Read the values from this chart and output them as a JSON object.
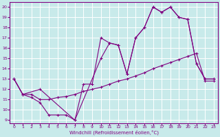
{
  "title": "",
  "xlabel": "Windchill (Refroidissement éolien,°C)",
  "bg_color": "#c8eaea",
  "line_color": "#800080",
  "grid_color": "#ffffff",
  "xlim": [
    -0.5,
    23.5
  ],
  "ylim": [
    8.7,
    20.5
  ],
  "yticks": [
    9,
    10,
    11,
    12,
    13,
    14,
    15,
    16,
    17,
    18,
    19,
    20
  ],
  "xticks": [
    0,
    1,
    2,
    3,
    4,
    5,
    6,
    7,
    8,
    9,
    10,
    11,
    12,
    13,
    14,
    15,
    16,
    17,
    18,
    19,
    20,
    21,
    22,
    23
  ],
  "line1_x": [
    0,
    1,
    2,
    3,
    4,
    5,
    6,
    7,
    8,
    9,
    10,
    11,
    12,
    13,
    14,
    15,
    16,
    17,
    18,
    19,
    20,
    21,
    22,
    23
  ],
  "line1_y": [
    13.0,
    11.5,
    11.2,
    10.7,
    9.5,
    9.5,
    9.5,
    9.0,
    12.5,
    12.5,
    17.0,
    16.5,
    16.3,
    13.5,
    17.0,
    18.0,
    20.0,
    19.5,
    20.0,
    19.0,
    18.8,
    14.5,
    13.0,
    13.0
  ],
  "line2_x": [
    0,
    1,
    2,
    3,
    4,
    5,
    6,
    7,
    8,
    9,
    10,
    11,
    12,
    13,
    14,
    15,
    16,
    17,
    18,
    19,
    20,
    21,
    22,
    23
  ],
  "line2_y": [
    13.0,
    11.5,
    11.5,
    11.0,
    11.0,
    11.2,
    11.3,
    11.5,
    11.8,
    12.0,
    12.2,
    12.5,
    12.8,
    13.0,
    13.3,
    13.6,
    14.0,
    14.3,
    14.6,
    14.9,
    15.2,
    15.5,
    12.8,
    12.8
  ],
  "line3_x": [
    0,
    1,
    3,
    7,
    10,
    11,
    12,
    13,
    14,
    15,
    16,
    17,
    18,
    19,
    20,
    21,
    22,
    23
  ],
  "line3_y": [
    13.0,
    11.5,
    12.0,
    9.0,
    15.0,
    16.5,
    16.3,
    13.5,
    17.0,
    18.0,
    20.0,
    19.5,
    20.0,
    19.0,
    18.8,
    14.5,
    13.0,
    13.0
  ]
}
